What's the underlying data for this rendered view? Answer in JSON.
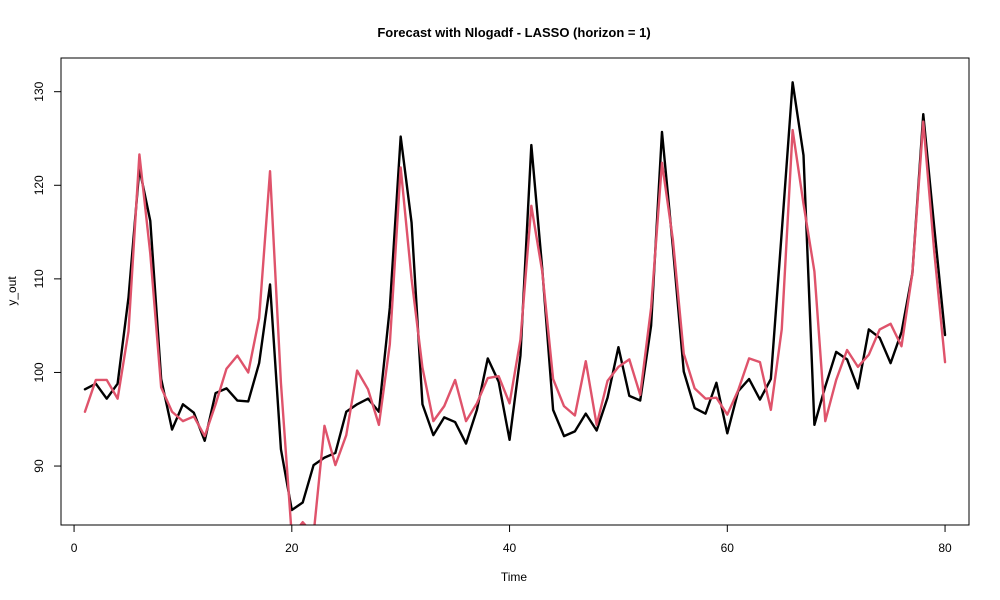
{
  "chart_data": {
    "type": "line",
    "title": "Forecast with Nlogadf - LASSO (horizon = 1)",
    "xlabel": "Time",
    "ylabel": "y_out",
    "xlim": [
      -1.2,
      82.2
    ],
    "ylim": [
      83.7,
      133.6
    ],
    "x_ticks": [
      0,
      20,
      40,
      60,
      80
    ],
    "y_ticks": [
      90,
      100,
      110,
      120,
      130
    ],
    "x_tick_labels": [
      "0",
      "20",
      "40",
      "60",
      "80"
    ],
    "y_tick_labels": [
      "90",
      "100",
      "110",
      "120",
      "130"
    ],
    "grid": false,
    "legend": "none",
    "x": [
      1,
      2,
      3,
      4,
      5,
      6,
      7,
      8,
      9,
      10,
      11,
      12,
      13,
      14,
      15,
      16,
      17,
      18,
      19,
      20,
      21,
      22,
      23,
      24,
      25,
      26,
      27,
      28,
      29,
      30,
      31,
      32,
      33,
      34,
      35,
      36,
      37,
      38,
      39,
      40,
      41,
      42,
      43,
      44,
      45,
      46,
      47,
      48,
      49,
      50,
      51,
      52,
      53,
      54,
      55,
      56,
      57,
      58,
      59,
      60,
      61,
      62,
      63,
      64,
      65,
      66,
      67,
      68,
      69,
      70,
      71,
      72,
      73,
      74,
      75,
      76,
      77,
      78,
      79,
      80
    ],
    "series": [
      {
        "color": "#000000",
        "values": [
          98.2,
          98.8,
          97.2,
          98.8,
          108.0,
          121.8,
          116.2,
          99.3,
          93.9,
          96.6,
          95.7,
          92.7,
          97.8,
          98.3,
          97.0,
          96.9,
          101.0,
          109.4,
          91.8,
          85.3,
          86.1,
          90.1,
          90.9,
          91.4,
          95.8,
          96.6,
          97.2,
          95.8,
          106.9,
          125.2,
          116.0,
          96.6,
          93.3,
          95.2,
          94.7,
          92.4,
          96.0,
          101.5,
          99.0,
          92.8,
          101.8,
          124.3,
          111.1,
          96.0,
          93.2,
          93.7,
          95.6,
          93.8,
          97.3,
          102.7,
          97.5,
          97.0,
          105.0,
          125.7,
          113.4,
          100.1,
          96.2,
          95.6,
          98.9,
          93.5,
          98.0,
          99.3,
          97.1,
          99.3,
          115.0,
          131.0,
          123.2,
          94.4,
          98.5,
          102.2,
          101.4,
          98.3,
          104.6,
          103.7,
          101.0,
          104.3,
          110.6,
          127.6,
          115.6,
          104.0
        ]
      },
      {
        "color": "#DF536B",
        "values": [
          95.8,
          99.2,
          99.2,
          97.2,
          104.4,
          123.3,
          112.7,
          98.4,
          95.8,
          94.8,
          95.3,
          93.2,
          96.6,
          100.4,
          101.8,
          100.0,
          105.8,
          121.5,
          98.9,
          82.5,
          84.0,
          82.7,
          94.3,
          90.1,
          93.3,
          100.2,
          98.2,
          94.4,
          103.0,
          121.9,
          110.0,
          100.5,
          94.8,
          96.4,
          99.2,
          94.8,
          96.7,
          99.4,
          99.6,
          96.7,
          103.5,
          117.8,
          110.8,
          99.3,
          96.4,
          95.4,
          101.2,
          94.4,
          99.1,
          100.6,
          101.4,
          97.6,
          106.9,
          122.4,
          114.2,
          102.0,
          98.3,
          97.2,
          97.3,
          95.5,
          98.1,
          101.5,
          101.1,
          96.0,
          104.6,
          125.9,
          118.0,
          110.8,
          94.8,
          99.2,
          102.4,
          100.6,
          101.9,
          104.6,
          105.2,
          102.8,
          110.6,
          126.8,
          113.0,
          101.1
        ]
      }
    ]
  }
}
